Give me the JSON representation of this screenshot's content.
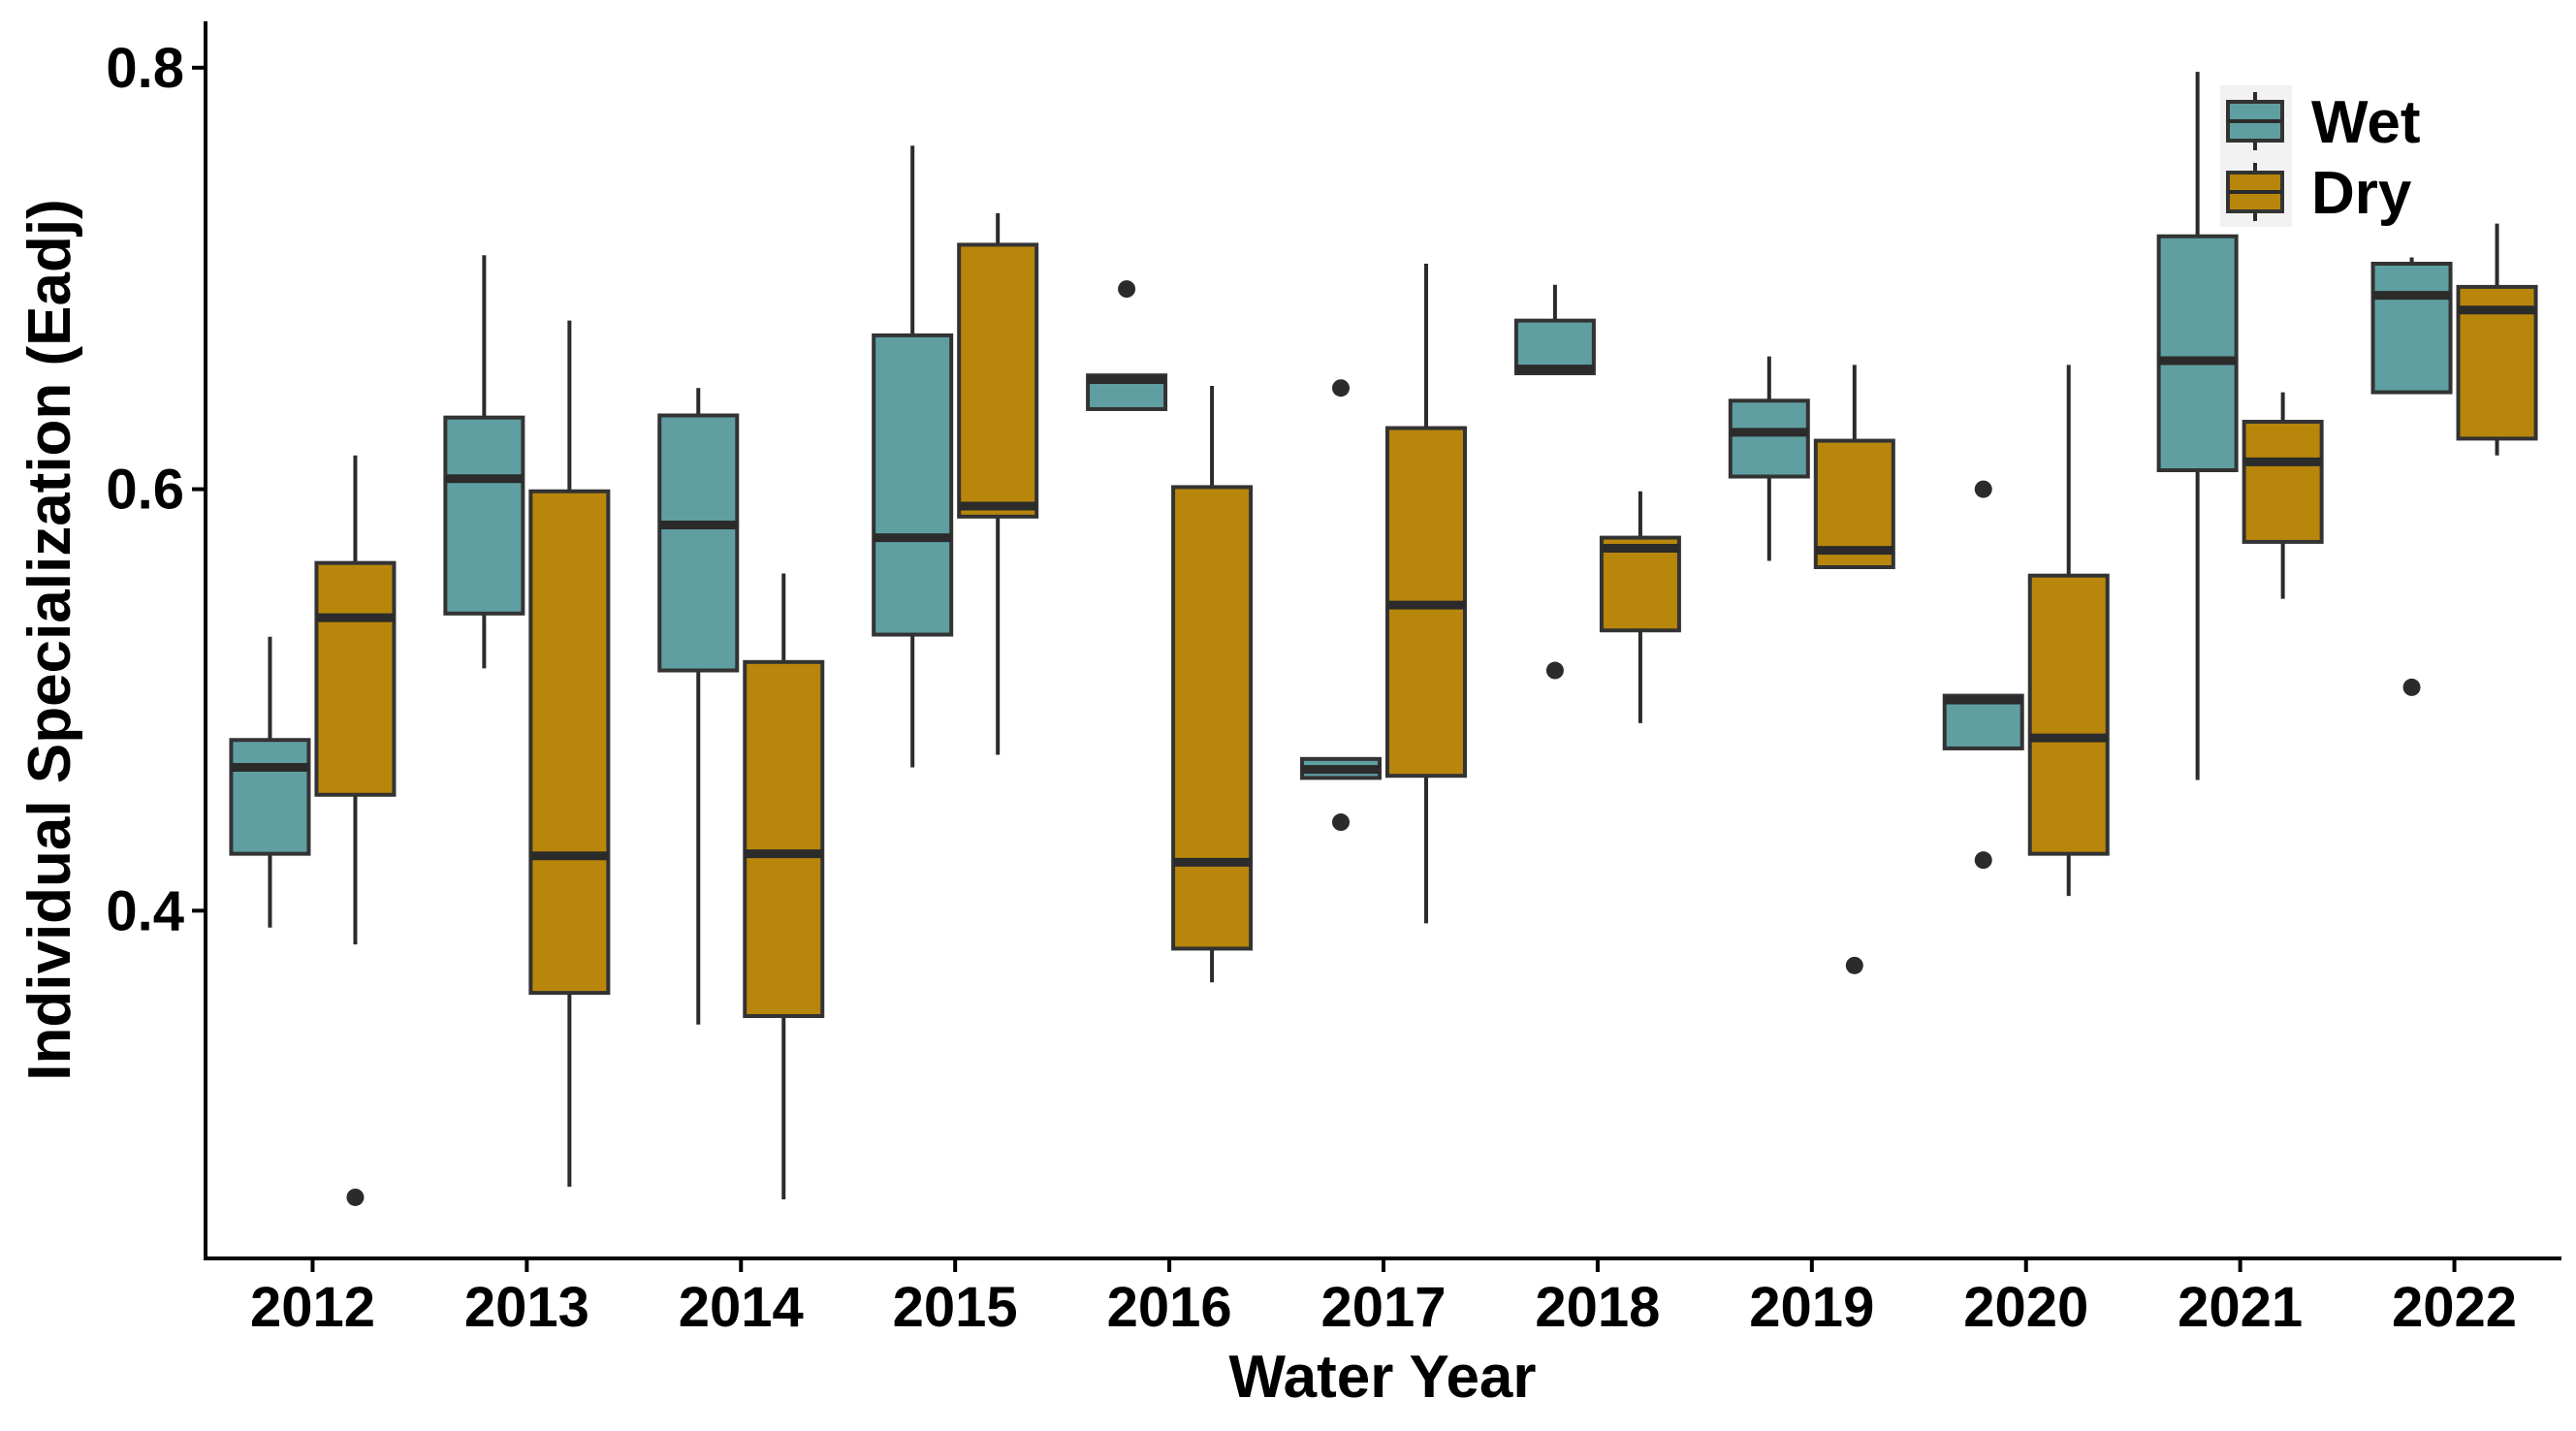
{
  "chart_data": {
    "type": "box",
    "title": "",
    "xlabel": "Water Year",
    "ylabel": "Individual Specialization (Eadj)",
    "ylim": [
      0.235,
      0.822
    ],
    "yticks": [
      0.4,
      0.6,
      0.8
    ],
    "ytick_labels": [
      "0.4",
      "0.6",
      "0.8"
    ],
    "grid": false,
    "legend_position": "top-right",
    "colors": {
      "Wet": "#5f9fa2",
      "Dry": "#b8860b"
    },
    "categories": [
      "2012",
      "2013",
      "2014",
      "2015",
      "2016",
      "2017",
      "2018",
      "2019",
      "2020",
      "2021",
      "2022"
    ],
    "series": [
      {
        "name": "Wet",
        "color": "#5f9fa2",
        "boxes": [
          {
            "min": 0.392,
            "q1": 0.427,
            "median": 0.468,
            "q3": 0.481,
            "max": 0.53,
            "outliers": []
          },
          {
            "min": 0.515,
            "q1": 0.541,
            "median": 0.605,
            "q3": 0.634,
            "max": 0.711,
            "outliers": []
          },
          {
            "min": 0.346,
            "q1": 0.514,
            "median": 0.583,
            "q3": 0.635,
            "max": 0.648,
            "outliers": []
          },
          {
            "min": 0.468,
            "q1": 0.531,
            "median": 0.577,
            "q3": 0.673,
            "max": 0.763,
            "outliers": []
          },
          {
            "min": 0.638,
            "q1": 0.638,
            "median": 0.652,
            "q3": 0.654,
            "max": 0.654,
            "outliers": [
              0.695
            ]
          },
          {
            "min": 0.463,
            "q1": 0.463,
            "median": 0.467,
            "q3": 0.472,
            "max": 0.472,
            "outliers": [
              0.648,
              0.442
            ]
          },
          {
            "min": 0.655,
            "q1": 0.655,
            "median": 0.657,
            "q3": 0.68,
            "max": 0.697,
            "outliers": [
              0.514
            ]
          },
          {
            "min": 0.566,
            "q1": 0.606,
            "median": 0.627,
            "q3": 0.642,
            "max": 0.663,
            "outliers": []
          },
          {
            "min": 0.477,
            "q1": 0.477,
            "median": 0.5,
            "q3": 0.502,
            "max": 0.502,
            "outliers": [
              0.6,
              0.424
            ]
          },
          {
            "min": 0.462,
            "q1": 0.609,
            "median": 0.661,
            "q3": 0.72,
            "max": 0.798,
            "outliers": []
          },
          {
            "min": 0.646,
            "q1": 0.646,
            "median": 0.692,
            "q3": 0.707,
            "max": 0.71,
            "outliers": [
              0.506
            ]
          }
        ]
      },
      {
        "name": "Dry",
        "color": "#b8860b",
        "boxes": [
          {
            "min": 0.384,
            "q1": 0.455,
            "median": 0.539,
            "q3": 0.565,
            "max": 0.616,
            "outliers": [
              0.264
            ]
          },
          {
            "min": 0.269,
            "q1": 0.361,
            "median": 0.426,
            "q3": 0.599,
            "max": 0.68,
            "outliers": []
          },
          {
            "min": 0.263,
            "q1": 0.35,
            "median": 0.427,
            "q3": 0.518,
            "max": 0.56,
            "outliers": []
          },
          {
            "min": 0.474,
            "q1": 0.587,
            "median": 0.592,
            "q3": 0.716,
            "max": 0.731,
            "outliers": []
          },
          {
            "min": 0.366,
            "q1": 0.382,
            "median": 0.423,
            "q3": 0.601,
            "max": 0.649,
            "outliers": []
          },
          {
            "min": 0.394,
            "q1": 0.464,
            "median": 0.545,
            "q3": 0.629,
            "max": 0.707,
            "outliers": []
          },
          {
            "min": 0.489,
            "q1": 0.533,
            "median": 0.572,
            "q3": 0.577,
            "max": 0.599,
            "outliers": []
          },
          {
            "min": 0.563,
            "q1": 0.563,
            "median": 0.571,
            "q3": 0.623,
            "max": 0.659,
            "outliers": [
              0.374
            ]
          },
          {
            "min": 0.407,
            "q1": 0.427,
            "median": 0.482,
            "q3": 0.559,
            "max": 0.659,
            "outliers": []
          },
          {
            "min": 0.548,
            "q1": 0.575,
            "median": 0.613,
            "q3": 0.632,
            "max": 0.646,
            "outliers": []
          },
          {
            "min": 0.616,
            "q1": 0.624,
            "median": 0.685,
            "q3": 0.696,
            "max": 0.726,
            "outliers": []
          }
        ]
      }
    ]
  }
}
